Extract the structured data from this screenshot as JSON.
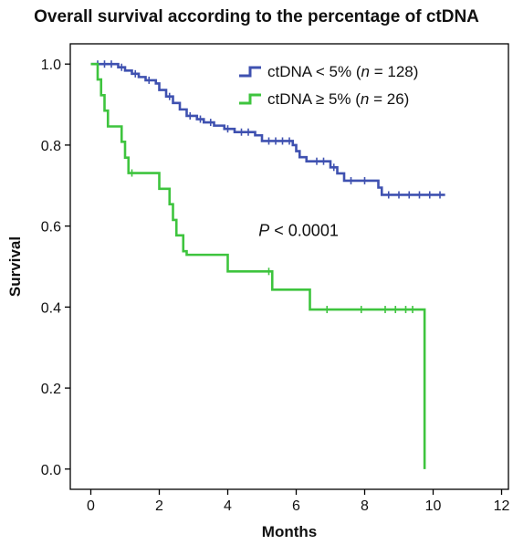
{
  "chart_data": {
    "type": "line",
    "title": "Overall survival according to the percentage of ctDNA",
    "xlabel": "Months",
    "ylabel": "Survival",
    "xlim": [
      -0.6,
      12.2
    ],
    "ylim": [
      -0.05,
      1.05
    ],
    "xticks": [
      0,
      2,
      4,
      6,
      8,
      10,
      12
    ],
    "xtick_labels": [
      "0",
      "2",
      "4",
      "6",
      "8",
      "10",
      "12"
    ],
    "yticks": [
      0.0,
      0.2,
      0.4,
      0.6,
      0.8,
      1.0
    ],
    "ytick_labels": [
      "0.0",
      "0.2",
      "0.4",
      "0.6",
      "0.8",
      "1.0"
    ],
    "grid": false,
    "legend_position": "top-right",
    "annotation": {
      "prefix": "P",
      "text": " < 0.0001",
      "x": 4.9,
      "y": 0.575
    },
    "series": [
      {
        "name": "ctDNA < 5% (n = 128)",
        "legend_main": "ctDNA < 5% (",
        "legend_n": "n",
        "legend_rest": " = 128)",
        "color": "#3f51b0",
        "steps": [
          [
            0,
            1.0
          ],
          [
            0.8,
            0.992
          ],
          [
            1.0,
            0.984
          ],
          [
            1.2,
            0.976
          ],
          [
            1.4,
            0.968
          ],
          [
            1.6,
            0.96
          ],
          [
            1.9,
            0.952
          ],
          [
            2.0,
            0.936
          ],
          [
            2.2,
            0.92
          ],
          [
            2.4,
            0.904
          ],
          [
            2.6,
            0.888
          ],
          [
            2.8,
            0.872
          ],
          [
            3.1,
            0.864
          ],
          [
            3.3,
            0.856
          ],
          [
            3.6,
            0.848
          ],
          [
            3.9,
            0.84
          ],
          [
            4.2,
            0.832
          ],
          [
            4.8,
            0.824
          ],
          [
            5.0,
            0.81
          ],
          [
            5.9,
            0.8
          ],
          [
            6.0,
            0.785
          ],
          [
            6.1,
            0.77
          ],
          [
            6.3,
            0.76
          ],
          [
            7.0,
            0.745
          ],
          [
            7.2,
            0.73
          ],
          [
            7.4,
            0.712
          ],
          [
            8.4,
            0.695
          ],
          [
            8.5,
            0.677
          ],
          [
            10.35,
            0.677
          ]
        ],
        "censors": [
          [
            0.2,
            1.0
          ],
          [
            0.4,
            1.0
          ],
          [
            0.6,
            1.0
          ],
          [
            0.9,
            0.992
          ],
          [
            1.3,
            0.976
          ],
          [
            1.7,
            0.96
          ],
          [
            2.3,
            0.92
          ],
          [
            2.9,
            0.872
          ],
          [
            3.2,
            0.864
          ],
          [
            3.5,
            0.856
          ],
          [
            4.0,
            0.84
          ],
          [
            4.4,
            0.832
          ],
          [
            4.6,
            0.832
          ],
          [
            5.2,
            0.81
          ],
          [
            5.4,
            0.81
          ],
          [
            5.6,
            0.81
          ],
          [
            5.8,
            0.81
          ],
          [
            6.6,
            0.76
          ],
          [
            6.8,
            0.76
          ],
          [
            7.1,
            0.745
          ],
          [
            7.6,
            0.712
          ],
          [
            8.0,
            0.712
          ],
          [
            8.7,
            0.677
          ],
          [
            9.0,
            0.677
          ],
          [
            9.3,
            0.677
          ],
          [
            9.6,
            0.677
          ],
          [
            9.9,
            0.677
          ],
          [
            10.2,
            0.677
          ]
        ]
      },
      {
        "name": "ctDNA ≥ 5% (n = 26)",
        "legend_main": "ctDNA ≥ 5% (",
        "legend_n": "n",
        "legend_rest": " = 26)",
        "color": "#3ec43e",
        "steps": [
          [
            0,
            1.0
          ],
          [
            0.2,
            0.962
          ],
          [
            0.3,
            0.923
          ],
          [
            0.4,
            0.885
          ],
          [
            0.5,
            0.846
          ],
          [
            0.9,
            0.808
          ],
          [
            1.0,
            0.769
          ],
          [
            1.1,
            0.731
          ],
          [
            2.0,
            0.692
          ],
          [
            2.3,
            0.654
          ],
          [
            2.4,
            0.615
          ],
          [
            2.5,
            0.577
          ],
          [
            2.7,
            0.538
          ],
          [
            2.8,
            0.529
          ],
          [
            4.0,
            0.488
          ],
          [
            5.3,
            0.443
          ],
          [
            6.4,
            0.394
          ],
          [
            9.75,
            0.394
          ],
          [
            9.75,
            0.0
          ]
        ],
        "censors": [
          [
            1.2,
            0.731
          ],
          [
            5.2,
            0.488
          ],
          [
            6.9,
            0.394
          ],
          [
            7.9,
            0.394
          ],
          [
            8.6,
            0.394
          ],
          [
            8.9,
            0.394
          ],
          [
            9.2,
            0.394
          ],
          [
            9.4,
            0.394
          ]
        ]
      }
    ]
  }
}
